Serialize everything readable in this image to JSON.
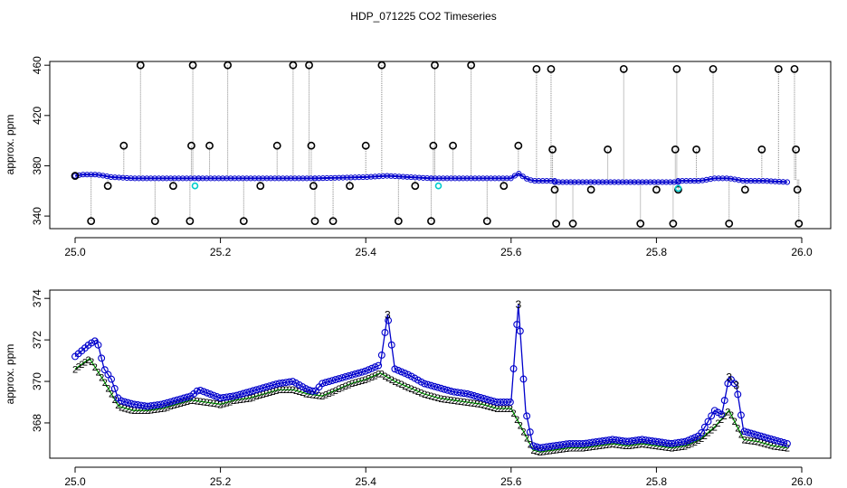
{
  "title": "HDP_071225  CO2 Timeseries",
  "colors": {
    "spike_line": "#888888",
    "outlier_marker": "#000000",
    "channel_1": "#00cccc",
    "channel_2": "#00aa00",
    "channel_3": "#0000cc"
  },
  "chart_data": [
    {
      "type": "scatter",
      "ylabel": "approx. ppm",
      "xlim": [
        25.0,
        26.0
      ],
      "ylim": [
        330,
        463
      ],
      "xticks": [
        "25.0",
        "25.2",
        "25.4",
        "25.6",
        "25.8",
        "26.0"
      ],
      "yticks": [
        "340",
        "380",
        "420",
        "460"
      ],
      "baseline_segments": [
        {
          "x": [
            25.0,
            25.01,
            25.02,
            25.03,
            25.04,
            25.05,
            25.08,
            25.12,
            25.16,
            25.17
          ],
          "y": [
            372,
            373,
            373,
            373,
            372,
            371,
            370,
            370,
            370,
            370
          ]
        },
        {
          "x": [
            25.17,
            25.2,
            25.25,
            25.3,
            25.33
          ],
          "y": [
            370,
            370,
            370,
            370,
            370
          ]
        },
        {
          "x": [
            25.33,
            25.4,
            25.43,
            25.46,
            25.49
          ],
          "y": [
            370,
            371,
            372,
            371,
            370
          ]
        },
        {
          "x": [
            25.49,
            25.55,
            25.6,
            25.61,
            25.62,
            25.63,
            25.66
          ],
          "y": [
            370,
            370,
            370,
            374,
            370,
            368,
            368
          ]
        },
        {
          "x": [
            25.66,
            25.7,
            25.75,
            25.8,
            25.83
          ],
          "y": [
            367,
            367,
            367,
            367,
            367
          ]
        },
        {
          "x": [
            25.83,
            25.86,
            25.88,
            25.9,
            25.92,
            25.95,
            25.98
          ],
          "y": [
            368,
            368,
            370,
            370,
            368,
            368,
            367
          ]
        }
      ],
      "outliers": [
        {
          "x": 25.0,
          "y": 372
        },
        {
          "x": 25.022,
          "y": 336
        },
        {
          "x": 25.045,
          "y": 364
        },
        {
          "x": 25.067,
          "y": 396
        },
        {
          "x": 25.09,
          "y": 460
        },
        {
          "x": 25.11,
          "y": 336
        },
        {
          "x": 25.135,
          "y": 364
        },
        {
          "x": 25.158,
          "y": 336
        },
        {
          "x": 25.16,
          "y": 396
        },
        {
          "x": 25.162,
          "y": 460
        },
        {
          "x": 25.185,
          "y": 396
        },
        {
          "x": 25.21,
          "y": 460
        },
        {
          "x": 25.232,
          "y": 336
        },
        {
          "x": 25.255,
          "y": 364
        },
        {
          "x": 25.278,
          "y": 396
        },
        {
          "x": 25.3,
          "y": 460
        },
        {
          "x": 25.322,
          "y": 460
        },
        {
          "x": 25.325,
          "y": 396
        },
        {
          "x": 25.328,
          "y": 364
        },
        {
          "x": 25.33,
          "y": 336
        },
        {
          "x": 25.355,
          "y": 336
        },
        {
          "x": 25.378,
          "y": 364
        },
        {
          "x": 25.4,
          "y": 396
        },
        {
          "x": 25.422,
          "y": 460
        },
        {
          "x": 25.445,
          "y": 336
        },
        {
          "x": 25.468,
          "y": 364
        },
        {
          "x": 25.49,
          "y": 336
        },
        {
          "x": 25.493,
          "y": 396
        },
        {
          "x": 25.495,
          "y": 460
        },
        {
          "x": 25.52,
          "y": 396
        },
        {
          "x": 25.545,
          "y": 460
        },
        {
          "x": 25.567,
          "y": 336
        },
        {
          "x": 25.59,
          "y": 364
        },
        {
          "x": 25.61,
          "y": 396
        },
        {
          "x": 25.635,
          "y": 457
        },
        {
          "x": 25.655,
          "y": 457
        },
        {
          "x": 25.657,
          "y": 393
        },
        {
          "x": 25.66,
          "y": 361
        },
        {
          "x": 25.662,
          "y": 334
        },
        {
          "x": 25.685,
          "y": 334
        },
        {
          "x": 25.71,
          "y": 361
        },
        {
          "x": 25.733,
          "y": 393
        },
        {
          "x": 25.755,
          "y": 457
        },
        {
          "x": 25.778,
          "y": 334
        },
        {
          "x": 25.8,
          "y": 361
        },
        {
          "x": 25.823,
          "y": 334
        },
        {
          "x": 25.826,
          "y": 393
        },
        {
          "x": 25.828,
          "y": 457
        },
        {
          "x": 25.83,
          "y": 361
        },
        {
          "x": 25.855,
          "y": 393
        },
        {
          "x": 25.878,
          "y": 457
        },
        {
          "x": 25.9,
          "y": 334
        },
        {
          "x": 25.922,
          "y": 361
        },
        {
          "x": 25.945,
          "y": 393
        },
        {
          "x": 25.968,
          "y": 457
        },
        {
          "x": 25.99,
          "y": 457
        },
        {
          "x": 25.992,
          "y": 393
        },
        {
          "x": 25.994,
          "y": 361
        },
        {
          "x": 25.996,
          "y": 334
        }
      ],
      "cyan_marks": [
        {
          "x": 25.165,
          "y": 364
        },
        {
          "x": 25.5,
          "y": 364
        },
        {
          "x": 25.83,
          "y": 362
        }
      ]
    },
    {
      "type": "line",
      "ylabel": "approx. ppm",
      "xlim": [
        25.0,
        26.0
      ],
      "ylim": [
        366.3,
        374.4
      ],
      "xticks": [
        "25.0",
        "25.2",
        "25.4",
        "25.6",
        "25.8",
        "26.0"
      ],
      "yticks": [
        "368",
        "370",
        "372",
        "374"
      ],
      "series": [
        {
          "name": "3",
          "x": [
            25.0,
            25.01,
            25.02,
            25.03,
            25.04,
            25.05,
            25.06,
            25.08,
            25.1,
            25.12,
            25.14,
            25.16,
            25.17,
            25.2,
            25.22,
            25.24,
            25.26,
            25.28,
            25.3,
            25.32,
            25.33,
            25.34,
            25.36,
            25.38,
            25.4,
            25.42,
            25.43,
            25.44,
            25.46,
            25.48,
            25.5,
            25.52,
            25.54,
            25.56,
            25.58,
            25.6,
            25.61,
            25.62,
            25.63,
            25.64,
            25.66,
            25.68,
            25.7,
            25.72,
            25.74,
            25.76,
            25.78,
            25.8,
            25.82,
            25.84,
            25.86,
            25.87,
            25.88,
            25.89,
            25.9,
            25.91,
            25.92,
            25.94,
            25.96,
            25.98
          ],
          "y": [
            371.2,
            371.5,
            371.8,
            372.0,
            370.6,
            370.1,
            369.1,
            368.9,
            368.8,
            368.9,
            369.1,
            369.3,
            369.6,
            369.2,
            369.3,
            369.5,
            369.7,
            369.9,
            370.0,
            369.6,
            369.5,
            369.9,
            370.1,
            370.3,
            370.5,
            370.8,
            373.2,
            370.6,
            370.3,
            369.9,
            369.7,
            369.5,
            369.4,
            369.2,
            369.0,
            369.0,
            373.7,
            368.6,
            366.9,
            366.8,
            366.9,
            367.0,
            367.0,
            367.1,
            367.2,
            367.1,
            367.2,
            367.1,
            367.0,
            367.1,
            367.4,
            368.0,
            368.6,
            368.4,
            370.2,
            369.8,
            367.6,
            367.4,
            367.2,
            367.0
          ]
        },
        {
          "name": "2",
          "x": [
            25.0,
            25.02,
            25.04,
            25.06,
            25.08,
            25.1,
            25.12,
            25.14,
            25.16,
            25.18,
            25.2,
            25.22,
            25.24,
            25.26,
            25.28,
            25.3,
            25.32,
            25.34,
            25.36,
            25.38,
            25.4,
            25.42,
            25.44,
            25.46,
            25.48,
            25.5,
            25.52,
            25.54,
            25.56,
            25.58,
            25.6,
            25.62,
            25.63,
            25.64,
            25.66,
            25.68,
            25.7,
            25.72,
            25.74,
            25.76,
            25.78,
            25.8,
            25.82,
            25.84,
            25.86,
            25.88,
            25.9,
            25.92,
            25.94,
            25.96,
            25.98
          ],
          "y": [
            370.6,
            371.1,
            370.0,
            368.8,
            368.6,
            368.6,
            368.7,
            368.9,
            369.1,
            369.0,
            368.9,
            369.1,
            369.2,
            369.4,
            369.6,
            369.6,
            369.4,
            369.3,
            369.6,
            369.9,
            370.1,
            370.4,
            370.0,
            369.7,
            369.4,
            369.2,
            369.1,
            369.0,
            368.9,
            368.7,
            368.7,
            367.4,
            366.7,
            366.6,
            366.7,
            366.8,
            366.8,
            366.9,
            367.0,
            366.9,
            367.0,
            366.9,
            366.8,
            366.9,
            367.2,
            367.8,
            368.6,
            367.2,
            367.1,
            366.9,
            366.8
          ]
        }
      ]
    }
  ]
}
